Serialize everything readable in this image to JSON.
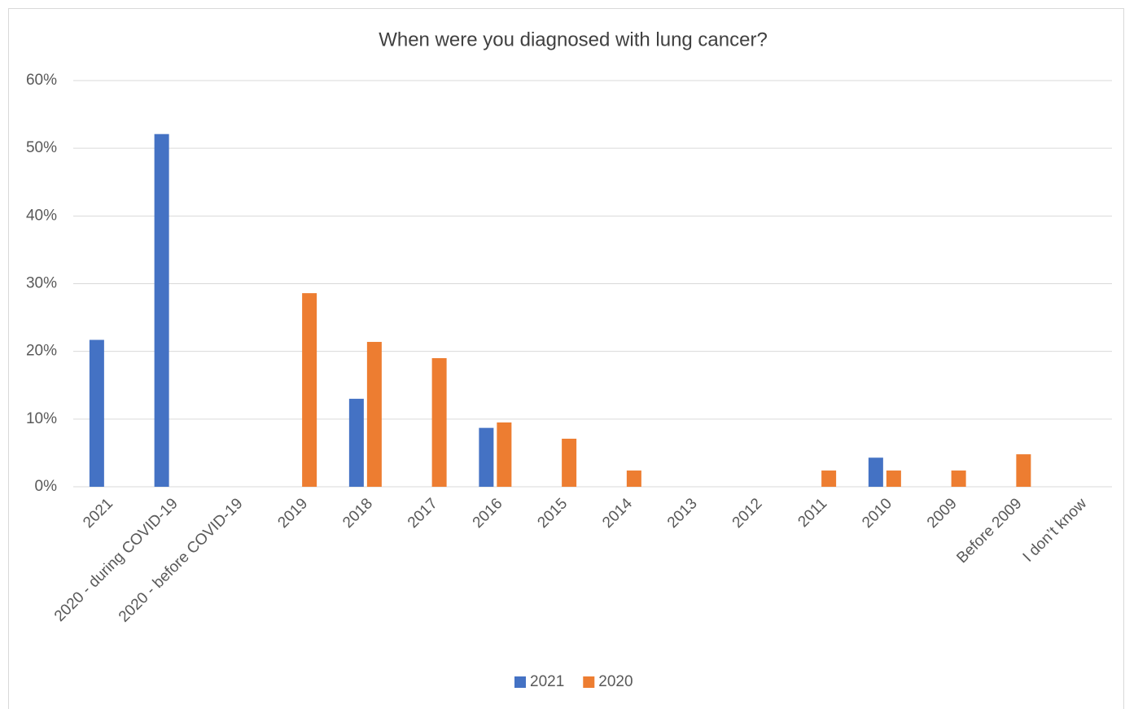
{
  "chart_data": {
    "type": "bar",
    "title": "When were you diagnosed with lung cancer?",
    "categories": [
      "2021",
      "2020 - during COVID-19",
      "2020 - before COVID-19",
      "2019",
      "2018",
      "2017",
      "2016",
      "2015",
      "2014",
      "2013",
      "2012",
      "2011",
      "2010",
      "2009",
      "Before 2009",
      "I don’t know"
    ],
    "series": [
      {
        "name": "2021",
        "color": "#4472c4",
        "values": [
          21.7,
          52.1,
          0,
          0,
          13.0,
          0,
          8.7,
          0,
          0,
          0,
          0,
          0,
          4.3,
          0,
          0,
          0
        ]
      },
      {
        "name": "2020",
        "color": "#ed7d31",
        "values": [
          0,
          0,
          0,
          28.6,
          21.4,
          19.0,
          9.5,
          7.1,
          2.4,
          0,
          0,
          2.4,
          2.4,
          2.4,
          4.8,
          0
        ]
      }
    ],
    "ylim": [
      0,
      60
    ],
    "yticks": [
      {
        "value": 0,
        "label": "0%"
      },
      {
        "value": 10,
        "label": "10%"
      },
      {
        "value": 20,
        "label": "20%"
      },
      {
        "value": 30,
        "label": "30%"
      },
      {
        "value": 40,
        "label": "40%"
      },
      {
        "value": 50,
        "label": "50%"
      },
      {
        "value": 60,
        "label": "60%"
      }
    ],
    "grid": true,
    "legend": "bottom"
  }
}
